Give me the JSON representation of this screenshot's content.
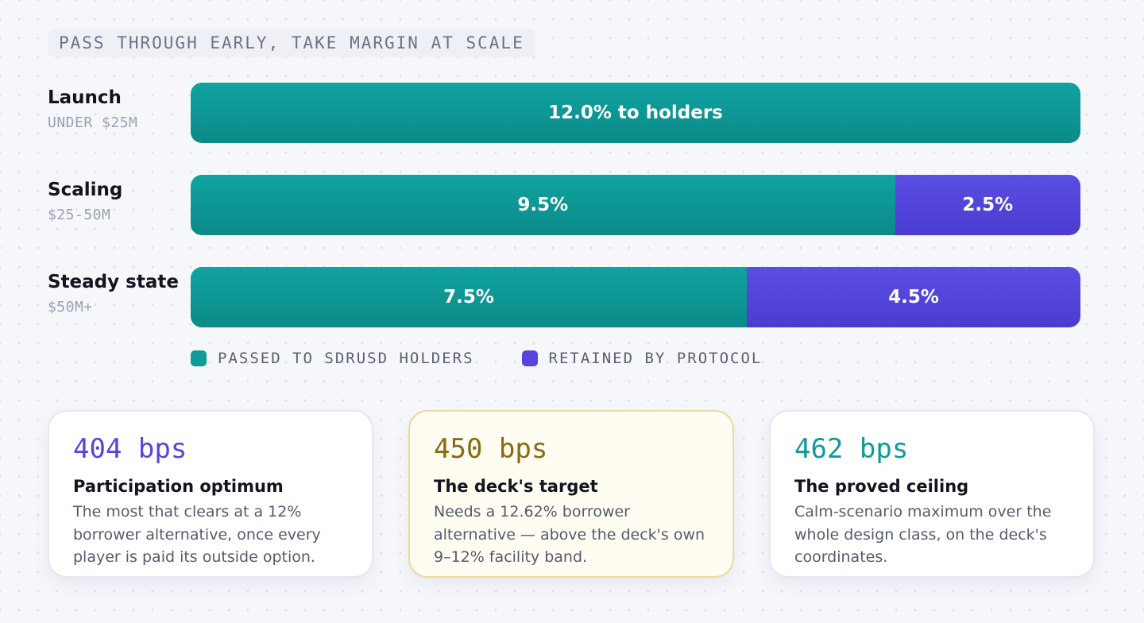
{
  "header": {
    "eyebrow": "PASS THROUGH EARLY, TAKE MARGIN AT SCALE"
  },
  "colors": {
    "passed": "#0f9c99",
    "retained": "#5546db",
    "highlight_value": "#8a6a12"
  },
  "chart_data": {
    "type": "bar",
    "orientation": "horizontal",
    "stacked": true,
    "categories": [
      "Launch",
      "Scaling",
      "Steady state"
    ],
    "category_subtitles": [
      "UNDER $25M",
      "$25-50M",
      "$50M+"
    ],
    "total": 12.0,
    "series": [
      {
        "name": "PASSED TO SDRUSD HOLDERS",
        "values": [
          12.0,
          9.5,
          7.5
        ],
        "labels": [
          "12.0% to holders",
          "9.5%",
          "7.5%"
        ],
        "color": "#0f9c99"
      },
      {
        "name": "RETAINED BY PROTOCOL",
        "values": [
          0,
          2.5,
          4.5
        ],
        "labels": [
          "",
          "2.5%",
          "4.5%"
        ],
        "color": "#5546db"
      }
    ],
    "legend": "bottom-left",
    "grid": false
  },
  "cards": [
    {
      "value": "404 bps",
      "title": "Participation optimum",
      "desc": "The most that clears at a 12% borrower alternative, once every player is paid its outside option.",
      "color": "#5546db"
    },
    {
      "value": "450 bps",
      "title": "The deck's target",
      "desc": "Needs a 12.62% borrower alternative — above the deck's own 9–12% facility band.",
      "color": "#8a6a12"
    },
    {
      "value": "462 bps",
      "title": "The proved ceiling",
      "desc": "Calm-scenario maximum over the whole design class, on the deck's coordinates.",
      "color": "#0f9c99"
    }
  ]
}
